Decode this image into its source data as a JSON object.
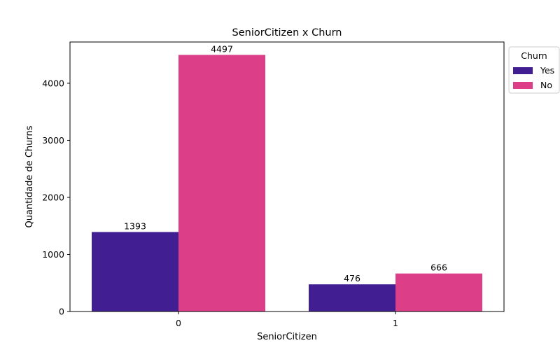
{
  "chart_data": {
    "type": "bar",
    "title": "SeniorCitizen x Churn",
    "xlabel": "SeniorCitizen",
    "ylabel": "Quantidade de Churns",
    "categories": [
      "0",
      "1"
    ],
    "series": [
      {
        "name": "Yes",
        "values": [
          1393,
          476
        ],
        "color": "#411f92"
      },
      {
        "name": "No",
        "values": [
          4497,
          666
        ],
        "color": "#dc3f87"
      }
    ],
    "ylim": [
      0,
      4723
    ],
    "yticks": [
      0,
      1000,
      2000,
      3000,
      4000
    ],
    "grid": false,
    "legend": {
      "title": "Churn",
      "placement": "outside-top-right"
    }
  }
}
